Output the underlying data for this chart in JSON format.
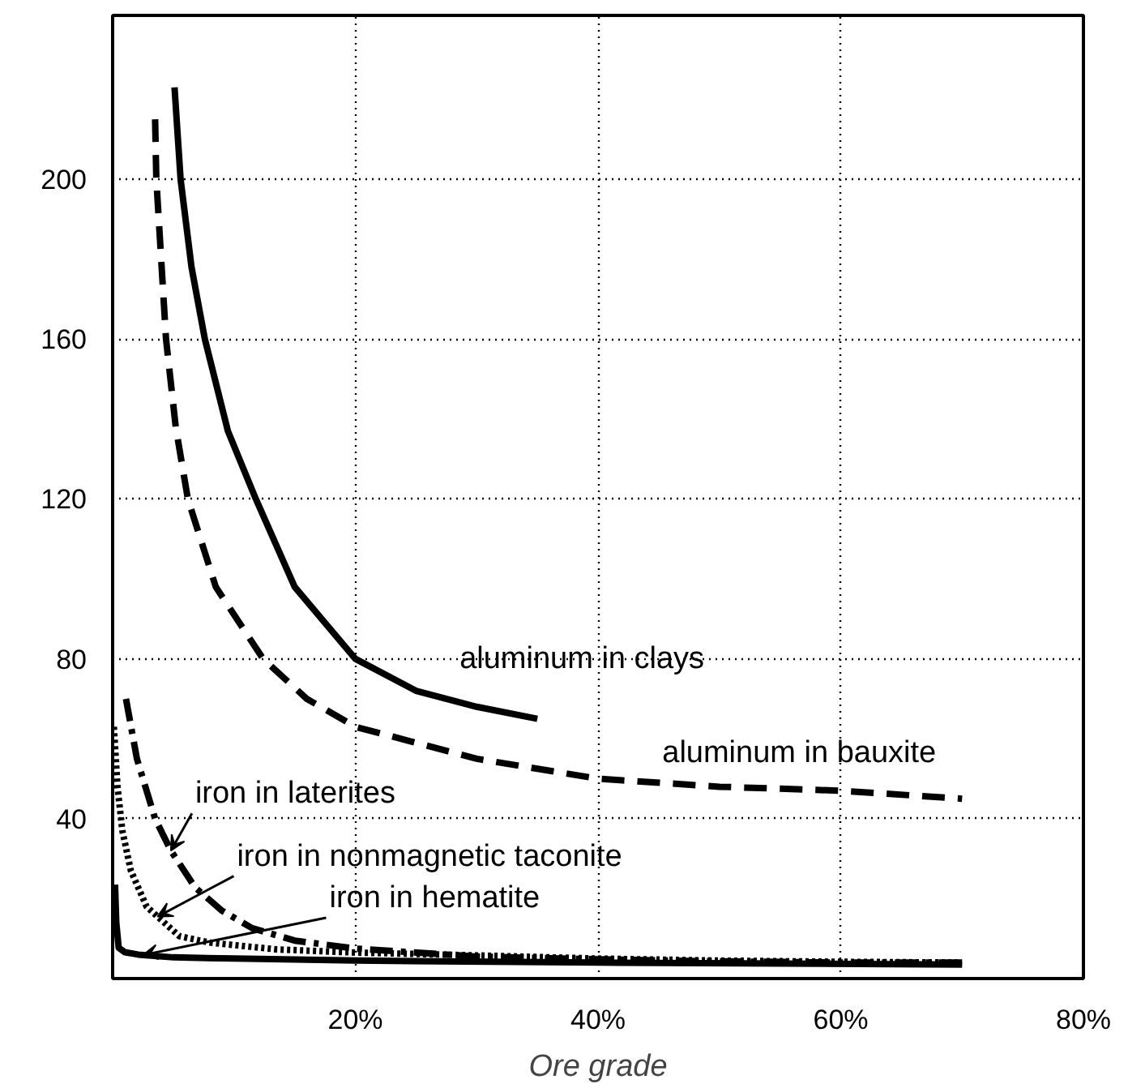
{
  "chart_data": {
    "type": "line",
    "xlabel": "Ore grade",
    "xlim": [
      0,
      80
    ],
    "ylim": [
      0,
      241
    ],
    "xticks": [
      {
        "value": 20,
        "label": "20%"
      },
      {
        "value": 40,
        "label": "40%"
      },
      {
        "value": 60,
        "label": "60%"
      },
      {
        "value": 80,
        "label": "80%"
      }
    ],
    "yticks": [
      40,
      80,
      120,
      160,
      200
    ],
    "grid": true,
    "marker": "none",
    "annotations": [
      {
        "text": "aluminum in clays",
        "x": 35,
        "y": 65
      },
      {
        "text": "aluminum in bauxite",
        "x": 70,
        "y": 45
      },
      {
        "text": "iron in laterites",
        "x": 4.8,
        "y": 32
      },
      {
        "text": "iron in nonmagnetic taconite",
        "x": 3.7,
        "y": 15.5
      },
      {
        "text": "iron in hematite",
        "x": 2.5,
        "y": 5.9
      }
    ],
    "series": [
      {
        "color": "#000000",
        "line_style": "solid",
        "x": [
          5.1,
          5.6,
          6.5,
          7.6,
          9.5,
          11.8,
          15,
          20,
          25,
          30,
          35
        ],
        "values": [
          223,
          200,
          178,
          160,
          137,
          120,
          98,
          80,
          72,
          68,
          65
        ]
      },
      {
        "color": "#000000",
        "line_style": "dashed",
        "x": [
          3.5,
          3.6,
          4.4,
          5.2,
          6.2,
          8.5,
          12.4,
          16,
          20,
          30,
          40,
          50,
          60,
          70
        ],
        "values": [
          215,
          200,
          160,
          138,
          120,
          98,
          80,
          70,
          63,
          55,
          50,
          48,
          47,
          45
        ]
      },
      {
        "color": "#000000",
        "line_style": "dashdot",
        "x": [
          1.1,
          2,
          3.5,
          4.8,
          6.8,
          9,
          11.5,
          15,
          20,
          30,
          40,
          50,
          60,
          70
        ],
        "values": [
          70,
          55,
          40,
          32,
          22.8,
          17,
          12.6,
          9.5,
          7.5,
          5.5,
          4.8,
          4.3,
          4,
          4
        ]
      },
      {
        "color": "#000000",
        "line_style": "dotted",
        "x": [
          0.1,
          0.4,
          0.8,
          1.5,
          2.8,
          3.7,
          5.5,
          8,
          13.5,
          20,
          30,
          40,
          50,
          60,
          70
        ],
        "values": [
          63,
          48,
          37,
          27,
          18,
          15.5,
          10.6,
          9,
          7.3,
          6.5,
          5.8,
          5,
          4.5,
          4.2,
          4
        ]
      },
      {
        "color": "#000000",
        "line_style": "solid",
        "x": [
          0.2,
          0.3,
          0.5,
          1,
          2.1,
          2.5,
          5,
          10,
          20,
          40,
          70
        ],
        "values": [
          23.5,
          14,
          7.7,
          6.6,
          6,
          5.9,
          5.3,
          5,
          4.5,
          4,
          3.5
        ]
      }
    ]
  }
}
